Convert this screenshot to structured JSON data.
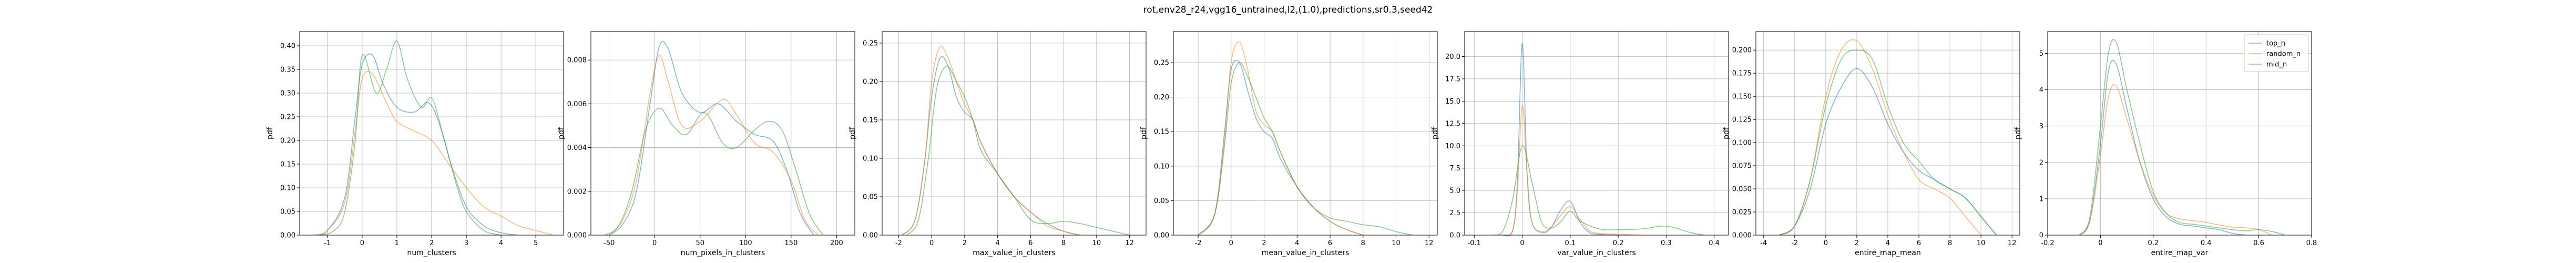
{
  "figure": {
    "title": "rot,env28_r24,vgg16_untrained,l2,(1.0),predictions,sr0.3,seed42"
  },
  "colors": {
    "top_n": "#1f77b4",
    "random_n": "#ff7f0e",
    "mid_n": "#2ca02c",
    "grid": "#b0b0b0"
  },
  "legend": {
    "location": "upper right of last panel",
    "entries": [
      {
        "label": "top_n",
        "color": "#1f77b4"
      },
      {
        "label": "random_n",
        "color": "#ff7f0e"
      },
      {
        "label": "mid_n",
        "color": "#2ca02c"
      }
    ]
  },
  "chart_data": [
    {
      "type": "line",
      "xlabel": "num_clusters",
      "ylabel": "pdf",
      "xlim": [
        -1.8,
        5.8
      ],
      "ylim": [
        0,
        0.43
      ],
      "xticks": [
        -1,
        0,
        1,
        2,
        3,
        4,
        5
      ],
      "yticks": [
        0.0,
        0.05,
        0.1,
        0.15,
        0.2,
        0.25,
        0.3,
        0.35,
        0.4
      ],
      "yticklabels": [
        "0.00",
        "0.05",
        "0.10",
        "0.15",
        "0.20",
        "0.25",
        "0.30",
        "0.35",
        "0.40"
      ],
      "series": [
        {
          "name": "top_n",
          "x": [
            -1.4,
            -1,
            -0.5,
            -0.2,
            0,
            0.3,
            0.6,
            1,
            1.5,
            1.9,
            2.2,
            2.6,
            3,
            3.5,
            4,
            4.5
          ],
          "y": [
            0,
            0.01,
            0.08,
            0.25,
            0.36,
            0.38,
            0.32,
            0.27,
            0.26,
            0.28,
            0.24,
            0.14,
            0.06,
            0.02,
            0.005,
            0
          ]
        },
        {
          "name": "random_n",
          "x": [
            -1.4,
            -1,
            -0.5,
            -0.2,
            0,
            0.3,
            0.7,
            1,
            1.5,
            2,
            2.5,
            3,
            3.5,
            4,
            4.5,
            5,
            5.5
          ],
          "y": [
            0,
            0.01,
            0.07,
            0.22,
            0.33,
            0.34,
            0.28,
            0.24,
            0.22,
            0.2,
            0.15,
            0.1,
            0.06,
            0.04,
            0.02,
            0.01,
            0
          ]
        },
        {
          "name": "mid_n",
          "x": [
            -1.2,
            -0.8,
            -0.5,
            -0.2,
            0,
            0.4,
            0.7,
            1,
            1.3,
            1.7,
            2,
            2.3,
            2.7,
            3,
            3.5,
            4
          ],
          "y": [
            0,
            0.01,
            0.05,
            0.2,
            0.38,
            0.3,
            0.35,
            0.41,
            0.33,
            0.27,
            0.29,
            0.22,
            0.11,
            0.05,
            0.01,
            0
          ]
        }
      ]
    },
    {
      "type": "line",
      "xlabel": "num_pixels_in_clusters",
      "ylabel": "pdf",
      "xlim": [
        -70,
        220
      ],
      "ylim": [
        0,
        0.0093
      ],
      "xticks": [
        -50,
        0,
        50,
        100,
        150,
        200
      ],
      "yticks": [
        0,
        0.002,
        0.004,
        0.006,
        0.008
      ],
      "yticklabels": [
        "0.000",
        "0.002",
        "0.004",
        "0.006",
        "0.008"
      ],
      "series": [
        {
          "name": "top_n",
          "x": [
            -50,
            -35,
            -20,
            -5,
            5,
            15,
            30,
            50,
            70,
            90,
            110,
            130,
            145,
            160,
            175
          ],
          "y": [
            0,
            0.0005,
            0.002,
            0.006,
            0.0086,
            0.0085,
            0.0065,
            0.0056,
            0.006,
            0.0052,
            0.0046,
            0.0043,
            0.003,
            0.001,
            0
          ]
        },
        {
          "name": "random_n",
          "x": [
            -50,
            -35,
            -20,
            -5,
            5,
            15,
            30,
            50,
            75,
            90,
            110,
            130,
            150,
            165,
            180
          ],
          "y": [
            0,
            0.0007,
            0.0025,
            0.0065,
            0.0082,
            0.007,
            0.005,
            0.0052,
            0.0062,
            0.0055,
            0.0042,
            0.0038,
            0.0025,
            0.0007,
            0
          ]
        },
        {
          "name": "mid_n",
          "x": [
            -55,
            -40,
            -25,
            -10,
            5,
            20,
            35,
            55,
            75,
            90,
            110,
            125,
            140,
            155,
            170,
            185
          ],
          "y": [
            0,
            0.0004,
            0.002,
            0.0048,
            0.0058,
            0.005,
            0.0046,
            0.0056,
            0.0042,
            0.004,
            0.0048,
            0.0052,
            0.0048,
            0.003,
            0.001,
            0
          ]
        }
      ]
    },
    {
      "type": "line",
      "xlabel": "max_value_in_clusters",
      "ylabel": "pdf",
      "xlim": [
        -3,
        13
      ],
      "ylim": [
        0,
        0.265
      ],
      "xticks": [
        -2,
        0,
        2,
        4,
        6,
        8,
        10,
        12
      ],
      "yticks": [
        0,
        0.05,
        0.1,
        0.15,
        0.2,
        0.25
      ],
      "yticklabels": [
        "0.00",
        "0.05",
        "0.10",
        "0.15",
        "0.20",
        "0.25"
      ],
      "series": [
        {
          "name": "top_n",
          "x": [
            -1.8,
            -1,
            -0.4,
            0,
            0.5,
            1,
            1.5,
            2,
            2.5,
            3,
            4,
            5,
            6,
            7,
            8,
            9
          ],
          "y": [
            0,
            0.02,
            0.1,
            0.18,
            0.23,
            0.22,
            0.18,
            0.16,
            0.15,
            0.12,
            0.08,
            0.05,
            0.03,
            0.015,
            0.005,
            0
          ]
        },
        {
          "name": "random_n",
          "x": [
            -1.8,
            -1,
            -0.4,
            0,
            0.5,
            1,
            1.5,
            2,
            2.5,
            3,
            4,
            5,
            6,
            7,
            8,
            9
          ],
          "y": [
            0,
            0.02,
            0.1,
            0.2,
            0.245,
            0.23,
            0.2,
            0.17,
            0.15,
            0.12,
            0.08,
            0.05,
            0.03,
            0.012,
            0.005,
            0
          ]
        },
        {
          "name": "mid_n",
          "x": [
            -1.5,
            -0.8,
            -0.2,
            0.3,
            0.9,
            1.5,
            2,
            2.5,
            3,
            4,
            5,
            6,
            7,
            8,
            9,
            10,
            11,
            12
          ],
          "y": [
            0,
            0.02,
            0.1,
            0.19,
            0.22,
            0.2,
            0.18,
            0.15,
            0.11,
            0.08,
            0.05,
            0.02,
            0.015,
            0.018,
            0.015,
            0.01,
            0.005,
            0
          ]
        }
      ]
    },
    {
      "type": "line",
      "xlabel": "mean_value_in_clusters",
      "ylabel": "pdf",
      "xlim": [
        -3.5,
        12.5
      ],
      "ylim": [
        0,
        0.295
      ],
      "xticks": [
        -2,
        0,
        2,
        4,
        6,
        8,
        10,
        12
      ],
      "yticks": [
        0,
        0.05,
        0.1,
        0.15,
        0.2,
        0.25
      ],
      "yticklabels": [
        "0.00",
        "0.05",
        "0.10",
        "0.15",
        "0.20",
        "0.25"
      ],
      "series": [
        {
          "name": "top_n",
          "x": [
            -2,
            -1,
            -0.4,
            0,
            0.5,
            1,
            1.5,
            2,
            2.5,
            3,
            4,
            5,
            6,
            7,
            8
          ],
          "y": [
            0,
            0.03,
            0.15,
            0.24,
            0.25,
            0.21,
            0.17,
            0.15,
            0.14,
            0.11,
            0.07,
            0.04,
            0.02,
            0.008,
            0
          ]
        },
        {
          "name": "random_n",
          "x": [
            -2,
            -1,
            -0.4,
            0,
            0.5,
            1,
            1.5,
            2,
            2.5,
            3,
            4,
            5,
            6,
            7,
            8
          ],
          "y": [
            0,
            0.03,
            0.14,
            0.25,
            0.28,
            0.24,
            0.18,
            0.16,
            0.15,
            0.12,
            0.07,
            0.04,
            0.02,
            0.008,
            0
          ]
        },
        {
          "name": "mid_n",
          "x": [
            -2,
            -1,
            -0.4,
            0,
            0.5,
            1,
            1.5,
            2,
            2.5,
            3,
            4,
            5,
            6,
            7,
            8,
            9,
            10,
            11
          ],
          "y": [
            0,
            0.03,
            0.13,
            0.22,
            0.25,
            0.23,
            0.2,
            0.17,
            0.15,
            0.12,
            0.07,
            0.04,
            0.025,
            0.02,
            0.015,
            0.012,
            0.005,
            0
          ]
        }
      ]
    },
    {
      "type": "line",
      "xlabel": "var_value_in_clusters",
      "ylabel": "pdf",
      "xlim": [
        -0.12,
        0.43
      ],
      "ylim": [
        0,
        22.8
      ],
      "xticks": [
        -0.1,
        0.0,
        0.1,
        0.2,
        0.3,
        0.4
      ],
      "yticks": [
        0,
        2.5,
        5,
        7.5,
        10,
        12.5,
        15,
        17.5,
        20
      ],
      "yticklabels": [
        "0.0",
        "2.5",
        "5.0",
        "7.5",
        "10.0",
        "12.5",
        "15.0",
        "17.5",
        "20.0"
      ],
      "series": [
        {
          "name": "top_n",
          "x": [
            -0.04,
            -0.02,
            -0.01,
            0,
            0.01,
            0.02,
            0.04,
            0.06,
            0.08,
            0.1,
            0.12,
            0.14,
            0.16,
            0.2
          ],
          "y": [
            0,
            0.5,
            6,
            21.5,
            7,
            1.5,
            0.3,
            0.8,
            2.8,
            3.8,
            1.5,
            0.3,
            0.1,
            0
          ]
        },
        {
          "name": "random_n",
          "x": [
            -0.04,
            -0.02,
            -0.01,
            0,
            0.01,
            0.02,
            0.04,
            0.06,
            0.08,
            0.1,
            0.12,
            0.14,
            0.16,
            0.2,
            0.25
          ],
          "y": [
            0,
            0.5,
            5,
            14.5,
            7,
            1.5,
            0.4,
            0.9,
            2.2,
            3.2,
            1.8,
            0.5,
            0.2,
            0.1,
            0
          ]
        },
        {
          "name": "mid_n",
          "x": [
            -0.06,
            -0.04,
            -0.02,
            0,
            0.02,
            0.04,
            0.06,
            0.08,
            0.1,
            0.12,
            0.16,
            0.2,
            0.25,
            0.3,
            0.35,
            0.38
          ],
          "y": [
            0,
            0.5,
            4,
            10,
            6,
            1.5,
            0.8,
            1.5,
            2.7,
            1.6,
            0.7,
            0.6,
            0.7,
            1.0,
            0.3,
            0
          ]
        }
      ]
    },
    {
      "type": "line",
      "xlabel": "entire_map_mean",
      "ylabel": "pdf",
      "xlim": [
        -4.5,
        12.5
      ],
      "ylim": [
        0,
        0.22
      ],
      "xticks": [
        -4,
        -2,
        0,
        2,
        4,
        6,
        8,
        10,
        12
      ],
      "yticks": [
        0,
        0.025,
        0.05,
        0.075,
        0.1,
        0.125,
        0.15,
        0.175,
        0.2
      ],
      "yticklabels": [
        "0.000",
        "0.025",
        "0.050",
        "0.075",
        "0.100",
        "0.125",
        "0.150",
        "0.175",
        "0.200"
      ],
      "series": [
        {
          "name": "top_n",
          "x": [
            -3,
            -2,
            -1,
            0,
            1,
            2,
            3,
            4,
            5,
            6,
            7,
            8,
            9,
            10,
            11
          ],
          "y": [
            0,
            0.01,
            0.05,
            0.12,
            0.16,
            0.18,
            0.16,
            0.12,
            0.09,
            0.07,
            0.06,
            0.05,
            0.04,
            0.02,
            0
          ]
        },
        {
          "name": "random_n",
          "x": [
            -3,
            -2,
            -1,
            0,
            1,
            2,
            3,
            4,
            5,
            6,
            7,
            8,
            9,
            10
          ],
          "y": [
            0,
            0.01,
            0.06,
            0.15,
            0.2,
            0.21,
            0.18,
            0.13,
            0.09,
            0.06,
            0.05,
            0.04,
            0.02,
            0
          ]
        },
        {
          "name": "mid_n",
          "x": [
            -3,
            -2,
            -1,
            0,
            1,
            2,
            3,
            4,
            5,
            6,
            7,
            8,
            9,
            10,
            11
          ],
          "y": [
            0,
            0.01,
            0.06,
            0.14,
            0.19,
            0.2,
            0.19,
            0.14,
            0.1,
            0.08,
            0.06,
            0.05,
            0.04,
            0.02,
            0
          ]
        }
      ]
    },
    {
      "type": "line",
      "xlabel": "entire_map_var",
      "ylabel": "pdf",
      "xlim": [
        -0.2,
        0.8
      ],
      "ylim": [
        0,
        5.6
      ],
      "xticks": [
        -0.2,
        0.0,
        0.2,
        0.4,
        0.6,
        0.8
      ],
      "yticks": [
        0,
        1,
        2,
        3,
        4,
        5
      ],
      "yticklabels": [
        "0",
        "1",
        "2",
        "3",
        "4",
        "5"
      ],
      "series": [
        {
          "name": "top_n",
          "x": [
            -0.08,
            -0.04,
            0,
            0.03,
            0.06,
            0.1,
            0.15,
            0.2,
            0.25,
            0.3,
            0.35,
            0.4,
            0.45,
            0.5,
            0.55
          ],
          "y": [
            0,
            0.4,
            2.5,
            4.5,
            4.7,
            3.5,
            2.0,
            1.0,
            0.5,
            0.3,
            0.25,
            0.2,
            0.15,
            0.05,
            0
          ]
        },
        {
          "name": "random_n",
          "x": [
            -0.08,
            -0.04,
            0,
            0.03,
            0.06,
            0.1,
            0.15,
            0.2,
            0.25,
            0.3,
            0.35,
            0.4,
            0.45,
            0.5,
            0.55,
            0.6,
            0.65
          ],
          "y": [
            0,
            0.4,
            2.2,
            3.8,
            4.1,
            3.2,
            2.0,
            1.1,
            0.6,
            0.45,
            0.4,
            0.35,
            0.28,
            0.22,
            0.2,
            0.15,
            0
          ]
        },
        {
          "name": "mid_n",
          "x": [
            -0.08,
            -0.04,
            0,
            0.03,
            0.06,
            0.1,
            0.15,
            0.2,
            0.25,
            0.3,
            0.35,
            0.4,
            0.45,
            0.5,
            0.55,
            0.6,
            0.65,
            0.7
          ],
          "y": [
            0,
            0.5,
            3,
            5.0,
            5.3,
            4.0,
            2.5,
            1.2,
            0.6,
            0.35,
            0.3,
            0.25,
            0.2,
            0.15,
            0.12,
            0.15,
            0.1,
            0
          ]
        }
      ]
    }
  ]
}
